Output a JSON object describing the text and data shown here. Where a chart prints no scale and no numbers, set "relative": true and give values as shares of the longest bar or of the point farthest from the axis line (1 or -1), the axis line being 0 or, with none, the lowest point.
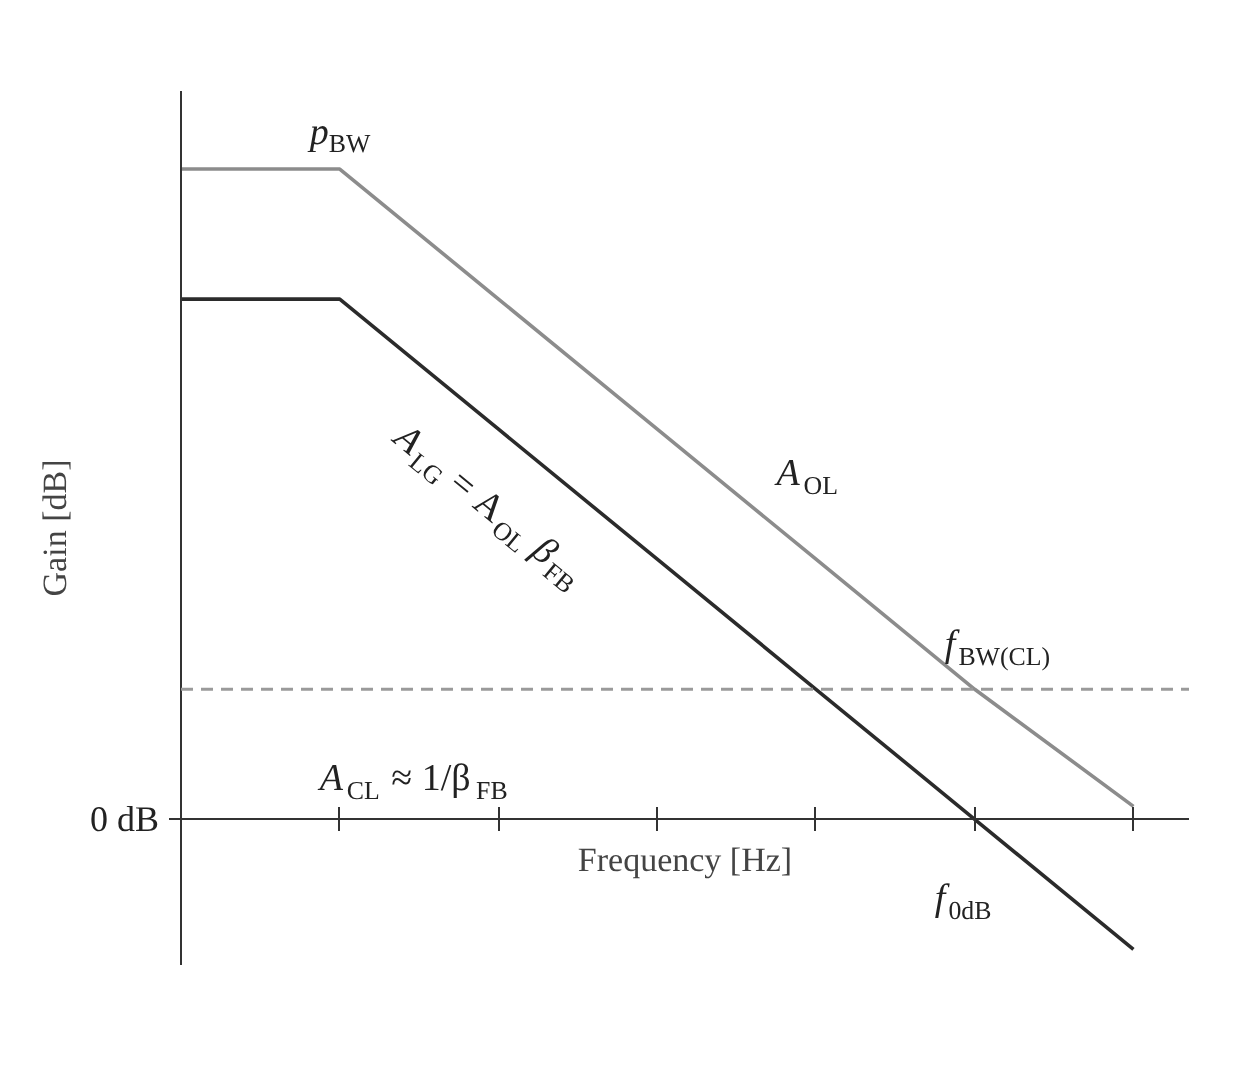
{
  "chart_data": {
    "type": "line",
    "relative": true,
    "xlabel": "Frequency [Hz]",
    "ylabel": "Gain [dB]",
    "categories": [
      null,
      null,
      null,
      null,
      null,
      null,
      null
    ],
    "series": [
      {
        "name": "A$_{OL}$",
        "color": "#8c8c8c",
        "values": [
          1,
          1,
          0.8,
          0.6,
          0.4,
          0.2,
          0.02
        ]
      },
      {
        "name": "A$_{LG}$ = A$_{OL}$ β$_{FB}$",
        "color": "#2b2b2b",
        "values": [
          0.8,
          0.8,
          0.6,
          0.4,
          0.2,
          0,
          -0.2
        ]
      }
    ],
    "ref_lines": [
      {
        "axis": "y",
        "value": 0.2,
        "label": "A$_{CL}$ ≈ 1/β$_{FB}$",
        "color": "#9a9a9a",
        "line_style": "dashed"
      }
    ],
    "annotations": [
      {
        "text": "p$_{BW}$",
        "y": 1
      },
      {
        "text": "f$_{BW(CL)}$",
        "y": 0.2
      },
      {
        "text": "f$_{0dB}$",
        "y": 0
      },
      "0 dB"
    ],
    "grid": false,
    "legend": false,
    "marker": "none",
    "line_style": "solid"
  }
}
